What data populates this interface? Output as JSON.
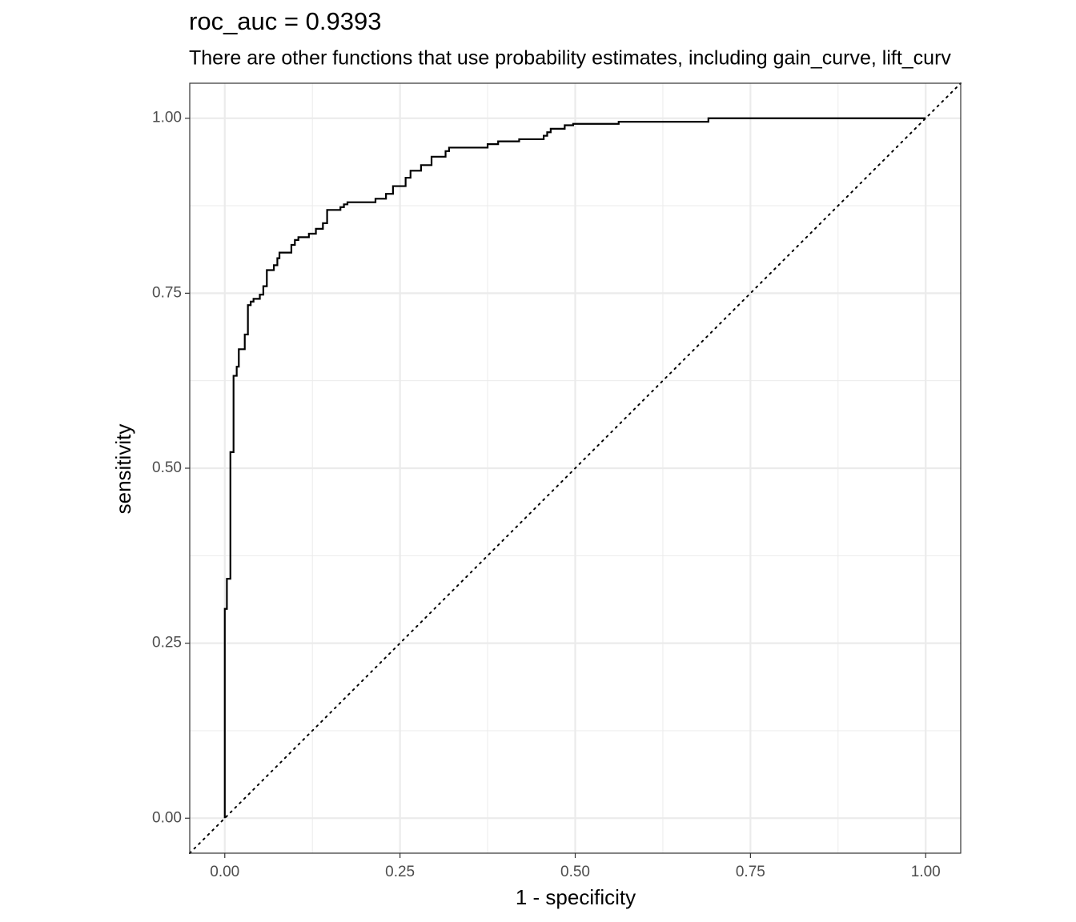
{
  "chart_data": {
    "type": "line",
    "title": "roc_auc = 0.9393",
    "subtitle": "There are other functions that use probability estimates, including gain_curve, lift_curv",
    "xlabel": "1 - specificity",
    "ylabel": "sensitivity",
    "color": "#000000",
    "grid": true,
    "x": [
      0,
      0,
      0.003,
      0.003,
      0.008,
      0.008,
      0.0125,
      0.0125,
      0.017,
      0.017,
      0.02,
      0.02,
      0.0285,
      0.0285,
      0.033,
      0.033,
      0.037,
      0.037,
      0.041,
      0.041,
      0.05,
      0.05,
      0.055,
      0.055,
      0.06,
      0.06,
      0.07,
      0.07,
      0.075,
      0.075,
      0.078,
      0.078,
      0.095,
      0.095,
      0.1,
      0.1,
      0.105,
      0.105,
      0.12,
      0.12,
      0.13,
      0.13,
      0.14,
      0.14,
      0.146,
      0.146,
      0.165,
      0.165,
      0.17,
      0.17,
      0.175,
      0.175,
      0.215,
      0.215,
      0.23,
      0.23,
      0.24,
      0.24,
      0.258,
      0.258,
      0.265,
      0.265,
      0.28,
      0.28,
      0.295,
      0.295,
      0.315,
      0.315,
      0.32,
      0.32,
      0.375,
      0.375,
      0.39,
      0.39,
      0.42,
      0.42,
      0.455,
      0.455,
      0.46,
      0.46,
      0.465,
      0.465,
      0.485,
      0.485,
      0.497,
      0.497,
      0.562,
      0.562,
      0.69,
      0.69,
      1
    ],
    "values": [
      0,
      0.299,
      0.299,
      0.342,
      0.342,
      0.523,
      0.523,
      0.632,
      0.632,
      0.645,
      0.645,
      0.67,
      0.67,
      0.691,
      0.691,
      0.733,
      0.733,
      0.738,
      0.738,
      0.742,
      0.742,
      0.748,
      0.748,
      0.76,
      0.76,
      0.783,
      0.783,
      0.79,
      0.79,
      0.8,
      0.8,
      0.808,
      0.808,
      0.819,
      0.819,
      0.826,
      0.826,
      0.83,
      0.83,
      0.835,
      0.835,
      0.842,
      0.842,
      0.85,
      0.85,
      0.869,
      0.869,
      0.873,
      0.873,
      0.877,
      0.877,
      0.88,
      0.88,
      0.885,
      0.885,
      0.892,
      0.892,
      0.903,
      0.903,
      0.915,
      0.915,
      0.925,
      0.925,
      0.933,
      0.933,
      0.945,
      0.945,
      0.953,
      0.953,
      0.958,
      0.958,
      0.963,
      0.963,
      0.967,
      0.967,
      0.97,
      0.97,
      0.975,
      0.975,
      0.98,
      0.98,
      0.985,
      0.985,
      0.99,
      0.99,
      0.992,
      0.992,
      0.995,
      0.995,
      1,
      1
    ],
    "xlim": [
      -0.05,
      1.05
    ],
    "ylim": [
      -0.05,
      1.05
    ],
    "xticks": [
      {
        "value": 0,
        "label": "0.00"
      },
      {
        "value": 0.25,
        "label": "0.25"
      },
      {
        "value": 0.5,
        "label": "0.50"
      },
      {
        "value": 0.75,
        "label": "0.75"
      },
      {
        "value": 1,
        "label": "1.00"
      }
    ],
    "yticks": [
      {
        "value": 0,
        "label": "0.00"
      },
      {
        "value": 0.25,
        "label": "0.25"
      },
      {
        "value": 0.5,
        "label": "0.50"
      },
      {
        "value": 0.75,
        "label": "0.75"
      },
      {
        "value": 1,
        "label": "1.00"
      }
    ]
  }
}
